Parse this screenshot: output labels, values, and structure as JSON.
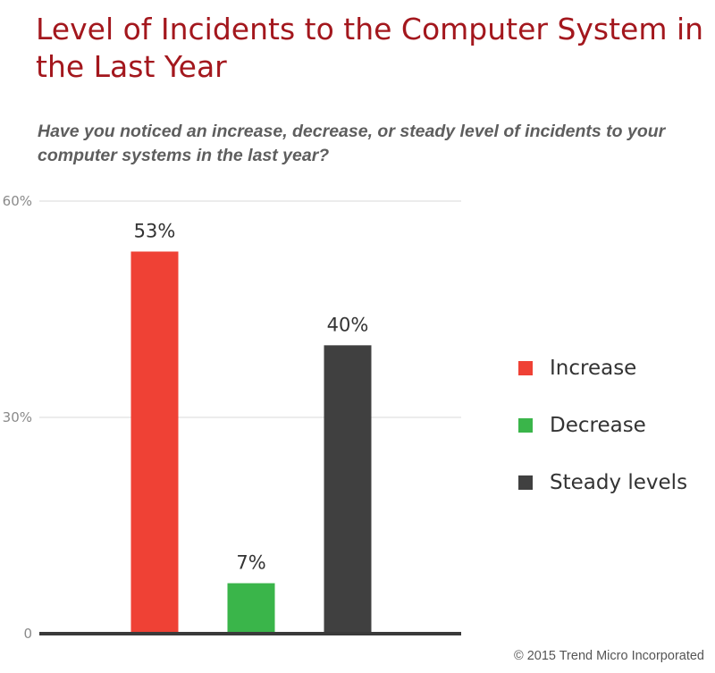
{
  "chart_data": {
    "type": "bar",
    "title": "Level of Incidents to the Computer System in the Last Year",
    "subtitle": "Have you noticed an increase, decrease, or steady level of incidents to your computer systems in the last year?",
    "categories": [
      "Increase",
      "Decrease",
      "Steady levels"
    ],
    "values": [
      53,
      7,
      40
    ],
    "data_labels": [
      "53%",
      "7%",
      "40%"
    ],
    "colors": [
      "#ef4135",
      "#3ab54a",
      "#404040"
    ],
    "ylim": [
      0,
      60
    ],
    "yticks": [
      0,
      30,
      60
    ],
    "ytick_labels": [
      "0",
      "30%",
      "60%"
    ],
    "xlabel": "",
    "ylabel": "",
    "grid": true,
    "legend_position": "right"
  },
  "footer": {
    "copyright": "© 2015 Trend Micro Incorporated"
  }
}
